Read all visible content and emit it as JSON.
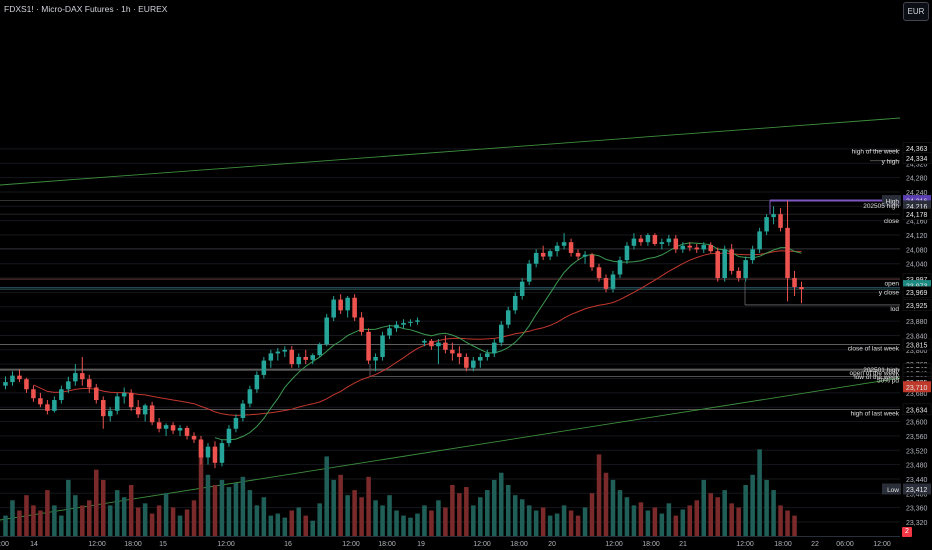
{
  "header": {
    "symbol_line": "FDXS1! · Micro-DAX Futures · 1h · EUREX"
  },
  "currency": "EUR",
  "tz_badge": "2",
  "colors": {
    "bull": "#26a69a",
    "bear": "#ef5350",
    "vol_bull": "#1f5f58",
    "vol_bear": "#7a2a2a",
    "ma_slow": "#c2372e",
    "ma_fast": "#3c9a52",
    "trend": "#3d8f3d",
    "level": "#6b6b6b",
    "high_line": "#7e57c2"
  },
  "axis": {
    "price_ticks": [
      "23,320",
      "23,360",
      "23,400",
      "23,440",
      "23,480",
      "23,520",
      "23,560",
      "23,600",
      "23,640",
      "23,680",
      "23,720",
      "23,760",
      "23,800",
      "23,840",
      "23,880",
      "23,920",
      "23,960",
      "24,000",
      "24,040",
      "24,080",
      "24,120",
      "24,160",
      "24,200",
      "24,240",
      "24,280",
      "24,320",
      "24,360"
    ],
    "time_labels": [
      ":00",
      "14",
      "12:00",
      "18:00",
      "15",
      "12:00",
      "16",
      "12:00",
      "18:00",
      "19",
      "12:00",
      "18:00",
      "20",
      "12:00",
      "18:00",
      "21",
      "12:00",
      "18:00",
      "22",
      "06:00",
      "12:00"
    ]
  },
  "price_tags": [
    {
      "label": "24,363",
      "price": 24363,
      "kind": "plain"
    },
    {
      "label": "24,334",
      "price": 24334,
      "kind": "plain"
    },
    {
      "label": "24,216",
      "price": 24216,
      "kind": "purple"
    },
    {
      "label": "24,216",
      "price": 24201,
      "kind": "dark"
    },
    {
      "label": "24,178",
      "price": 24178,
      "kind": "plain"
    },
    {
      "label": "23,997",
      "price": 23997,
      "kind": "plain"
    },
    {
      "label": "23,973",
      "price": 23979,
      "kind": "teal"
    },
    {
      "label": "23,969",
      "price": 23961,
      "kind": "plain"
    },
    {
      "label": "23,925",
      "price": 23925,
      "kind": "plain"
    },
    {
      "label": "23,815",
      "price": 23815,
      "kind": "plain"
    },
    {
      "label": "23,746",
      "price": 23746,
      "kind": "plain"
    },
    {
      "label": "23,743",
      "price": 23734,
      "kind": "plain"
    },
    {
      "label": "23,726",
      "price": 23722,
      "kind": "plain"
    },
    {
      "label": "23,725",
      "price": 23710,
      "kind": "plain"
    },
    {
      "label": "23,710",
      "price": 23697,
      "kind": "red"
    },
    {
      "label": "23,634",
      "price": 23634,
      "kind": "plain"
    },
    {
      "label": "23,412",
      "price": 23412,
      "kind": "dark"
    }
  ],
  "level_labels": [
    {
      "label": "high of the week",
      "price": 24356
    },
    {
      "label": "y high",
      "price": 24327
    },
    {
      "label": "High",
      "price": 24216
    },
    {
      "label": "202505 high",
      "price": 24204
    },
    {
      "label": "close",
      "price": 24162
    },
    {
      "label": "open",
      "price": 23988
    },
    {
      "label": "y close",
      "price": 23962
    },
    {
      "label": "lod",
      "price": 23916
    },
    {
      "label": "close of last week",
      "price": 23806
    },
    {
      "label": "202501 high",
      "price": 23747
    },
    {
      "label": "open of the week",
      "price": 23738
    },
    {
      "label": "low of the week",
      "price": 23727
    },
    {
      "label": "50% pd",
      "price": 23717
    },
    {
      "label": "high of last week",
      "price": 23625
    },
    {
      "label": "Low",
      "price": 23412
    }
  ],
  "chart_data": {
    "type": "candlestick",
    "title": "FDXS1! · Micro-DAX Futures · 1h · EUREX",
    "ylim": [
      23300,
      24400
    ],
    "candles": [
      [
        23700,
        23726,
        23690,
        23710
      ],
      [
        23710,
        23740,
        23700,
        23728
      ],
      [
        23728,
        23745,
        23710,
        23718
      ],
      [
        23718,
        23722,
        23680,
        23690
      ],
      [
        23690,
        23700,
        23655,
        23665
      ],
      [
        23665,
        23680,
        23640,
        23648
      ],
      [
        23648,
        23660,
        23620,
        23630
      ],
      [
        23630,
        23670,
        23625,
        23660
      ],
      [
        23660,
        23700,
        23650,
        23690
      ],
      [
        23690,
        23725,
        23680,
        23712
      ],
      [
        23712,
        23760,
        23700,
        23735
      ],
      [
        23735,
        23780,
        23700,
        23718
      ],
      [
        23718,
        23730,
        23680,
        23695
      ],
      [
        23695,
        23705,
        23650,
        23660
      ],
      [
        23660,
        23670,
        23580,
        23615
      ],
      [
        23615,
        23640,
        23600,
        23630
      ],
      [
        23630,
        23680,
        23620,
        23670
      ],
      [
        23670,
        23695,
        23650,
        23680
      ],
      [
        23680,
        23690,
        23630,
        23640
      ],
      [
        23640,
        23660,
        23610,
        23620
      ],
      [
        23620,
        23650,
        23600,
        23645
      ],
      [
        23645,
        23655,
        23590,
        23598
      ],
      [
        23598,
        23610,
        23570,
        23580
      ],
      [
        23580,
        23595,
        23560,
        23590
      ],
      [
        23590,
        23598,
        23565,
        23575
      ],
      [
        23575,
        23590,
        23560,
        23582
      ],
      [
        23582,
        23588,
        23550,
        23560
      ],
      [
        23560,
        23570,
        23540,
        23550
      ],
      [
        23550,
        23560,
        23480,
        23500
      ],
      [
        23500,
        23540,
        23480,
        23530
      ],
      [
        23530,
        23545,
        23470,
        23485
      ],
      [
        23485,
        23550,
        23475,
        23540
      ],
      [
        23540,
        23590,
        23530,
        23580
      ],
      [
        23580,
        23620,
        23570,
        23610
      ],
      [
        23610,
        23660,
        23600,
        23650
      ],
      [
        23650,
        23700,
        23640,
        23690
      ],
      [
        23690,
        23740,
        23680,
        23730
      ],
      [
        23730,
        23780,
        23720,
        23770
      ],
      [
        23770,
        23800,
        23750,
        23790
      ],
      [
        23790,
        23805,
        23770,
        23795
      ],
      [
        23795,
        23810,
        23780,
        23800
      ],
      [
        23800,
        23810,
        23750,
        23760
      ],
      [
        23760,
        23790,
        23750,
        23780
      ],
      [
        23780,
        23800,
        23760,
        23772
      ],
      [
        23772,
        23790,
        23760,
        23785
      ],
      [
        23785,
        23820,
        23780,
        23815
      ],
      [
        23815,
        23900,
        23810,
        23890
      ],
      [
        23890,
        23950,
        23880,
        23940
      ],
      [
        23940,
        23955,
        23900,
        23910
      ],
      [
        23910,
        23950,
        23890,
        23945
      ],
      [
        23945,
        23955,
        23880,
        23890
      ],
      [
        23890,
        23905,
        23840,
        23850
      ],
      [
        23850,
        23860,
        23760,
        23770
      ],
      [
        23770,
        23790,
        23740,
        23780
      ],
      [
        23780,
        23850,
        23770,
        23840
      ],
      [
        23840,
        23870,
        23830,
        23860
      ],
      [
        23860,
        23880,
        23850,
        23870
      ],
      [
        23870,
        23885,
        23860,
        23875
      ],
      [
        23875,
        23885,
        23865,
        23878
      ],
      [
        23878,
        23890,
        23870,
        23882
      ],
      [
        23820,
        23830,
        23810,
        23825
      ],
      [
        23825,
        23830,
        23800,
        23810
      ],
      [
        23810,
        23830,
        23760,
        23820
      ],
      [
        23820,
        23840,
        23790,
        23800
      ],
      [
        23800,
        23820,
        23770,
        23790
      ],
      [
        23790,
        23810,
        23760,
        23780
      ],
      [
        23780,
        23790,
        23740,
        23750
      ],
      [
        23750,
        23780,
        23740,
        23770
      ],
      [
        23770,
        23790,
        23750,
        23780
      ],
      [
        23780,
        23800,
        23770,
        23790
      ],
      [
        23790,
        23830,
        23780,
        23820
      ],
      [
        23820,
        23880,
        23810,
        23870
      ],
      [
        23870,
        23920,
        23860,
        23910
      ],
      [
        23910,
        23960,
        23900,
        23950
      ],
      [
        23950,
        24000,
        23940,
        23990
      ],
      [
        23990,
        24050,
        23980,
        24040
      ],
      [
        24040,
        24080,
        24030,
        24070
      ],
      [
        24070,
        24090,
        24050,
        24060
      ],
      [
        24060,
        24080,
        24050,
        24075
      ],
      [
        24075,
        24100,
        24060,
        24090
      ],
      [
        24090,
        24125,
        24080,
        24100
      ],
      [
        24100,
        24110,
        24060,
        24070
      ],
      [
        24070,
        24080,
        24050,
        24060
      ],
      [
        24060,
        24075,
        24040,
        24065
      ],
      [
        24065,
        24070,
        24020,
        24030
      ],
      [
        24030,
        24040,
        23990,
        24000
      ],
      [
        24000,
        24010,
        23960,
        23970
      ],
      [
        23970,
        24020,
        23960,
        24010
      ],
      [
        24010,
        24060,
        24000,
        24050
      ],
      [
        24050,
        24100,
        24040,
        24090
      ],
      [
        24090,
        24125,
        24080,
        24110
      ],
      [
        24110,
        24120,
        24090,
        24100
      ],
      [
        24100,
        24125,
        24090,
        24120
      ],
      [
        24120,
        24125,
        24090,
        24095
      ],
      [
        24095,
        24110,
        24080,
        24100
      ],
      [
        24100,
        24120,
        24090,
        24110
      ],
      [
        24110,
        24120,
        24070,
        24080
      ],
      [
        24080,
        24100,
        24070,
        24090
      ],
      [
        24090,
        24100,
        24075,
        24085
      ],
      [
        24085,
        24095,
        24070,
        24080
      ],
      [
        24080,
        24100,
        24070,
        24092
      ],
      [
        24092,
        24100,
        24070,
        24075
      ],
      [
        24075,
        24085,
        23990,
        24000
      ],
      [
        24000,
        24090,
        23990,
        24080
      ],
      [
        24080,
        24095,
        24010,
        24020
      ],
      [
        24020,
        24030,
        23990,
        24000
      ],
      [
        24000,
        24060,
        23990,
        24050
      ],
      [
        24050,
        24090,
        24040,
        24080
      ],
      [
        24080,
        24140,
        24070,
        24130
      ],
      [
        24130,
        24178,
        24120,
        24170
      ],
      [
        24170,
        24200,
        24150,
        24178
      ],
      [
        24178,
        24195,
        24130,
        24140
      ],
      [
        24140,
        24216,
        23935,
        24000
      ],
      [
        24000,
        24020,
        23950,
        23975
      ],
      [
        23975,
        23990,
        23930,
        23969
      ]
    ],
    "volume_relative": [
      0.2,
      0.35,
      0.25,
      0.4,
      0.3,
      0.25,
      0.45,
      0.3,
      0.2,
      0.55,
      0.4,
      0.3,
      0.35,
      0.65,
      0.55,
      0.3,
      0.45,
      0.38,
      0.5,
      0.28,
      0.32,
      0.22,
      0.3,
      0.42,
      0.28,
      0.2,
      0.26,
      0.35,
      0.9,
      0.6,
      0.5,
      0.55,
      0.48,
      0.52,
      0.58,
      0.45,
      0.3,
      0.38,
      0.2,
      0.22,
      0.18,
      0.25,
      0.28,
      0.2,
      0.15,
      0.32,
      0.78,
      0.55,
      0.6,
      0.4,
      0.45,
      0.38,
      0.58,
      0.35,
      0.3,
      0.4,
      0.25,
      0.2,
      0.18,
      0.22,
      0.3,
      0.25,
      0.35,
      0.28,
      0.5,
      0.42,
      0.48,
      0.3,
      0.38,
      0.45,
      0.55,
      0.62,
      0.5,
      0.4,
      0.36,
      0.3,
      0.25,
      0.28,
      0.2,
      0.22,
      0.3,
      0.25,
      0.2,
      0.28,
      0.42,
      0.8,
      0.62,
      0.55,
      0.45,
      0.38,
      0.3,
      0.33,
      0.25,
      0.28,
      0.22,
      0.32,
      0.2,
      0.26,
      0.3,
      0.35,
      0.55,
      0.42,
      0.38,
      0.45,
      0.32,
      0.28,
      0.5,
      0.6,
      0.85,
      0.55,
      0.45,
      0.3,
      0.25,
      0.2
    ]
  }
}
